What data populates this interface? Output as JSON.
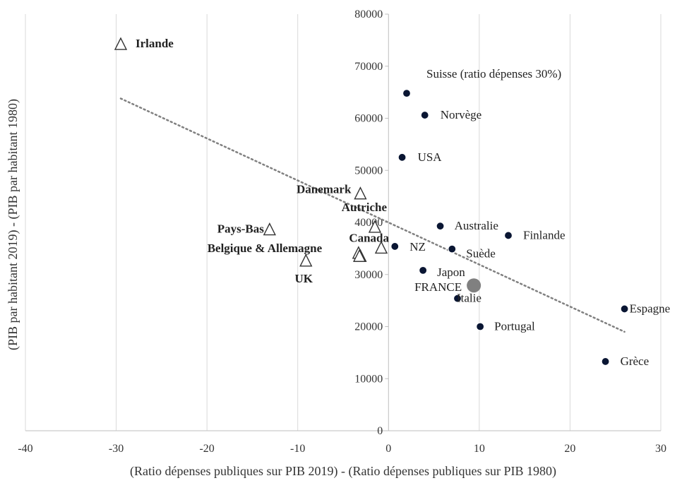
{
  "chart_data": {
    "type": "scatter",
    "title": "",
    "xlabel": "(Ratio dépenses publiques sur PIB 2019) - (Ratio dépenses publiques sur PIB 1980)",
    "ylabel": "(PIB par habitant 2019) - (PIB par habitant 1980)",
    "xlim": [
      -40,
      30
    ],
    "ylim": [
      0,
      80000
    ],
    "xticks": [
      -40,
      -30,
      -20,
      -10,
      0,
      10,
      20,
      30
    ],
    "yticks": [
      0,
      10000,
      20000,
      30000,
      40000,
      50000,
      60000,
      70000,
      80000
    ],
    "grid": "vertical",
    "colors": {
      "circle": "#0a1633",
      "france": "#808080",
      "triangle": "#333333",
      "trend": "#808080"
    },
    "series": [
      {
        "marker": "circle",
        "points": [
          {
            "label": "Suisse (ratio dépenses 30%)",
            "x": 2,
            "y": 64800
          },
          {
            "label": "Norvège",
            "x": 4,
            "y": 60600
          },
          {
            "label": "USA",
            "x": 1.5,
            "y": 52500
          },
          {
            "label": "Australie",
            "x": 5.7,
            "y": 39300
          },
          {
            "label": "Finlande",
            "x": 13.2,
            "y": 37500
          },
          {
            "label": "NZ",
            "x": 0.7,
            "y": 35400
          },
          {
            "label": "Suède",
            "x": 7,
            "y": 34900
          },
          {
            "label": "Japon",
            "x": 3.8,
            "y": 30800
          },
          {
            "label": "Italie",
            "x": 7.6,
            "y": 25400
          },
          {
            "label": "Espagne",
            "x": 26,
            "y": 23400
          },
          {
            "label": "Portugal",
            "x": 10.1,
            "y": 20000
          },
          {
            "label": "Grèce",
            "x": 23.9,
            "y": 13300
          }
        ]
      },
      {
        "marker": "france",
        "points": [
          {
            "label": "FRANCE",
            "x": 9.4,
            "y": 27900
          }
        ]
      },
      {
        "marker": "triangle",
        "points": [
          {
            "label": "Irlande",
            "x": -29.5,
            "y": 74300
          },
          {
            "label": "Danemark",
            "x": -3.1,
            "y": 45600
          },
          {
            "label": "Autriche",
            "x": -1.5,
            "y": 39200
          },
          {
            "label": "Pays-Bas",
            "x": -13.1,
            "y": 38700
          },
          {
            "label": "Canada",
            "x": -0.8,
            "y": 35200
          },
          {
            "label": "",
            "x": -3.3,
            "y": 34200
          },
          {
            "label": "",
            "x": -3.1,
            "y": 33600
          },
          {
            "label": "Belgique & Allemagne",
            "x": -3.2,
            "y": 33600
          },
          {
            "label": "UK",
            "x": -9.1,
            "y": 32700
          }
        ]
      }
    ],
    "trendline": {
      "x": [
        -29.5,
        26
      ],
      "y": [
        63800,
        19000
      ]
    }
  }
}
